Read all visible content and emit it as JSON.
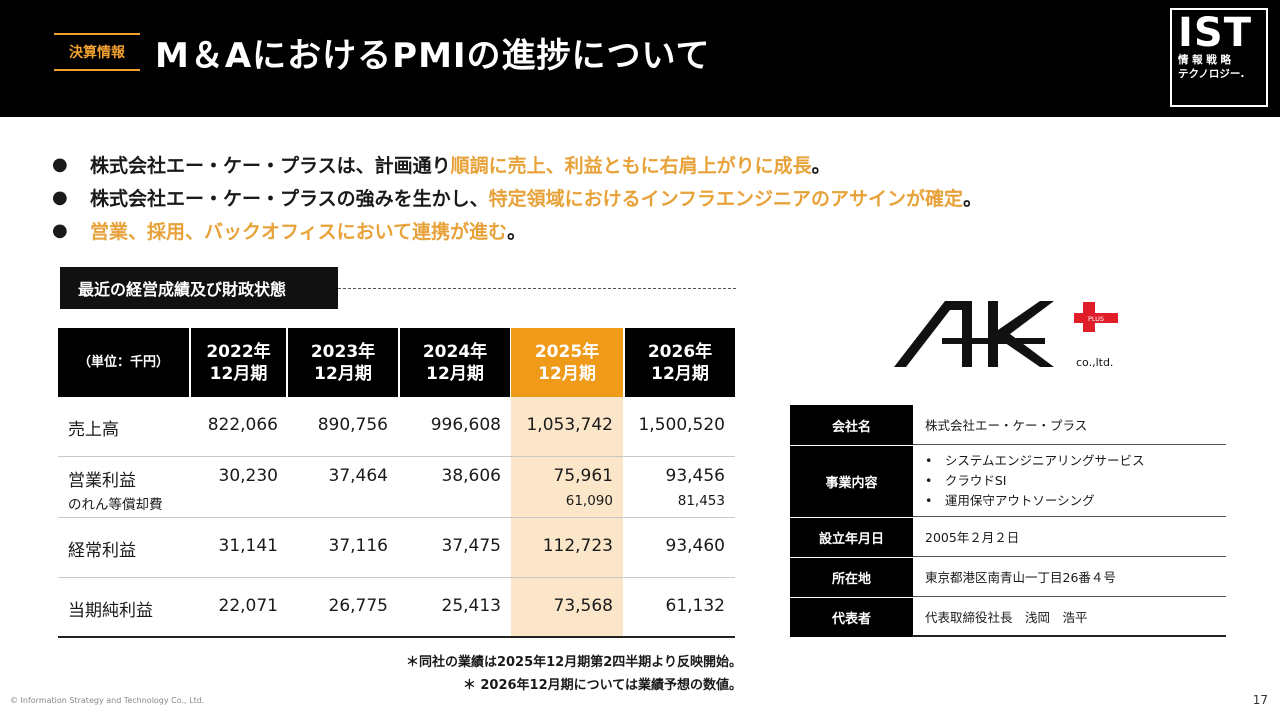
{
  "header": {
    "tag": "決算情報",
    "title": "M＆AにおけるPMIの進捗について",
    "logo_big": "IST",
    "logo_line1": "情 報 戦 略",
    "logo_line2": "テクノロジー."
  },
  "bullets": [
    {
      "dot": "●",
      "a": "株式会社エー・ケー・プラスは、計画通り",
      "b": "順調に売上、利益ともに右肩上がりに成長",
      "c": "。"
    },
    {
      "dot": "●",
      "a": "株式会社エー・ケー・プラスの強みを生かし、",
      "b": "特定領域におけるインフラエンジニアのアサインが確定",
      "c": "。"
    },
    {
      "dot": "●",
      "a": "",
      "b": "営業、採用、バックオフィスにおいて連携が進む",
      "c": "。"
    }
  ],
  "section_label": "最近の経営成績及び財政状態",
  "fin_table": {
    "unit_label": "（単位：千円）",
    "columns": [
      {
        "year": "2022年",
        "period": "12月期"
      },
      {
        "year": "2023年",
        "period": "12月期"
      },
      {
        "year": "2024年",
        "period": "12月期"
      },
      {
        "year": "2025年",
        "period": "12月期"
      },
      {
        "year": "2026年",
        "period": "12月期"
      }
    ],
    "rows": [
      {
        "label": "売上高",
        "values": [
          "822,066",
          "890,756",
          "996,608",
          "1,053,742",
          "1,500,520"
        ]
      },
      {
        "label": "営業利益",
        "sublabel": "のれん等償却費",
        "values": [
          "30,230",
          "37,464",
          "38,606",
          "75,961",
          "93,456"
        ],
        "subvalues": [
          "",
          "",
          "",
          "61,090",
          "81,453"
        ]
      },
      {
        "label": "経常利益",
        "values": [
          "31,141",
          "37,116",
          "37,475",
          "112,723",
          "93,460"
        ]
      },
      {
        "label": "当期純利益",
        "values": [
          "22,071",
          "26,775",
          "25,413",
          "73,568",
          "61,132"
        ]
      }
    ]
  },
  "notes": [
    "＊同社の業績は2025年12月期第2四半期より反映開始。",
    "＊ 2026年12月期については業績予想の数値。"
  ],
  "ak_logo": {
    "plus_text": "PLUS",
    "suffix": "co.,ltd."
  },
  "company": {
    "rows": [
      {
        "label": "会社名",
        "value": "株式会社エー・ケー・プラス"
      },
      {
        "label": "事業内容",
        "items": [
          "•　システムエンジニアリングサービス",
          "•　クラウドSI",
          "•　運用保守アウトソーシング"
        ]
      },
      {
        "label": "設立年月日",
        "value": "2005年２月２日"
      },
      {
        "label": "所在地",
        "value": "東京都港区南青山一丁目26番４号"
      },
      {
        "label": "代表者",
        "value": "代表取締役社長　浅岡　浩平"
      }
    ]
  },
  "footer": {
    "copyright": "© Information Strategy and Technology Co., Ltd.",
    "page": "17"
  },
  "colors": {
    "accent": "#f09a1a",
    "highlight": "#fbe6c9",
    "header_bg": "#000000"
  }
}
